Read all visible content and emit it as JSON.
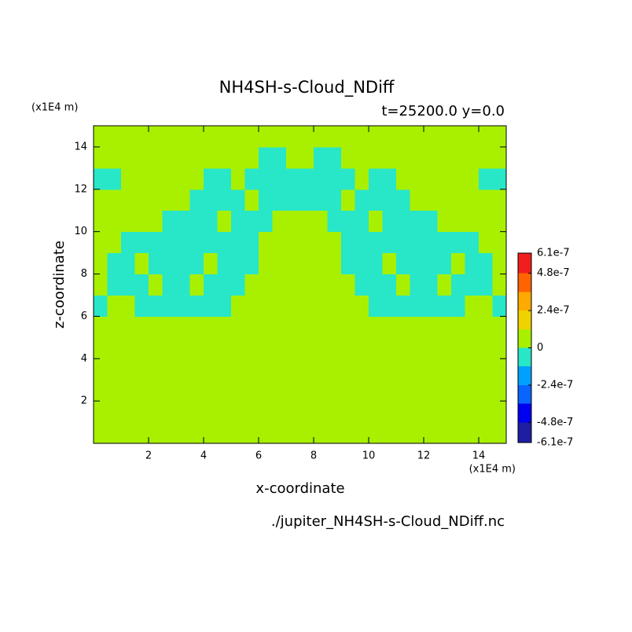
{
  "chart_data": {
    "type": "contour",
    "title": "NH4SH-s-Cloud_NDiff",
    "subtitle": "t=25200.0 y=0.0",
    "xlabel": "x-coordinate",
    "ylabel": "z-coordinate",
    "x_unit": "(x1E4 m)",
    "y_unit": "(x1E4 m)",
    "file": "./jupiter_NH4SH-s-Cloud_NDiff.nc",
    "xlim": [
      0,
      15
    ],
    "ylim": [
      0,
      15
    ],
    "xticks": [
      2,
      4,
      6,
      8,
      10,
      12,
      14
    ],
    "yticks": [
      2,
      4,
      6,
      8,
      10,
      12,
      14
    ],
    "x": [
      0.25,
      0.75,
      1.25,
      1.75,
      2.25,
      2.75,
      3.25,
      3.75,
      4.25,
      4.75,
      5.25,
      5.75,
      6.25,
      6.75,
      7.25,
      7.75,
      8.25,
      8.75,
      9.25,
      9.75,
      10.25,
      10.75,
      11.25,
      11.75,
      12.25,
      12.75,
      13.25,
      13.75,
      14.25,
      14.75
    ],
    "y": [
      0.5,
      1.5,
      2.5,
      3.5,
      4.5,
      5.5,
      6.5,
      7.5,
      8.5,
      9.5,
      10.5,
      11.5,
      12.5,
      13.5,
      14.5
    ],
    "z": [
      [
        0,
        0,
        0,
        0,
        0,
        0,
        0,
        0,
        0,
        0,
        0,
        0,
        0,
        0,
        0,
        0,
        0,
        0,
        0,
        0,
        0,
        0,
        0,
        0,
        0,
        0,
        0,
        0,
        0,
        0
      ],
      [
        0,
        0,
        0,
        0,
        0,
        0,
        0,
        0,
        0,
        0,
        0,
        0,
        0,
        0,
        0,
        0,
        0,
        0,
        0,
        0,
        0,
        0,
        0,
        0,
        0,
        0,
        0,
        0,
        0,
        0
      ],
      [
        0,
        0,
        0,
        0,
        0,
        0,
        0,
        0,
        0,
        0,
        0,
        0,
        0,
        0,
        0,
        0,
        0,
        0,
        0,
        0,
        0,
        0,
        0,
        0,
        0,
        0,
        0,
        0,
        0,
        0
      ],
      [
        0,
        0,
        0,
        0,
        0,
        0,
        0,
        0,
        0,
        0,
        0,
        0,
        0,
        0,
        0,
        0,
        0,
        0,
        0,
        0,
        0,
        0,
        0,
        0,
        0,
        0,
        0,
        0,
        0,
        0
      ],
      [
        0,
        0,
        0,
        0,
        0,
        0,
        0,
        0,
        0,
        0,
        0,
        0,
        0,
        0,
        0,
        0,
        0,
        0,
        0,
        0,
        0,
        0,
        0,
        0,
        0,
        0,
        0,
        0,
        0,
        0
      ],
      [
        0,
        0,
        0,
        0,
        0,
        0,
        0,
        0,
        0,
        0,
        0,
        0,
        0,
        0,
        0,
        0,
        0,
        0,
        0,
        0,
        0,
        0,
        0,
        0,
        0,
        0,
        0,
        0,
        0,
        0
      ],
      [
        -5e-08,
        0,
        0,
        -5e-08,
        -5e-08,
        -5e-08,
        -5e-08,
        -5e-08,
        -5e-08,
        -5e-08,
        0,
        0,
        0,
        0,
        0,
        0,
        0,
        0,
        0,
        0,
        -5e-08,
        -5e-08,
        -5e-08,
        -5e-08,
        -5e-08,
        -5e-08,
        -5e-08,
        0,
        0,
        -5e-08
      ],
      [
        0,
        -5e-08,
        -5e-08,
        -5e-08,
        0,
        -5e-08,
        -5e-08,
        0,
        -5e-08,
        -5e-08,
        -5e-08,
        0,
        0,
        0,
        0,
        0,
        0,
        0,
        0,
        -5e-08,
        -5e-08,
        -5e-08,
        0,
        -5e-08,
        -5e-08,
        0,
        -5e-08,
        -5e-08,
        -5e-08,
        0
      ],
      [
        0,
        -5e-08,
        -5e-08,
        0,
        -5e-08,
        -5e-08,
        -5e-08,
        -5e-08,
        0,
        -5e-08,
        -5e-08,
        -5e-08,
        0,
        0,
        0,
        0,
        0,
        0,
        -5e-08,
        -5e-08,
        -5e-08,
        0,
        -5e-08,
        -5e-08,
        -5e-08,
        -5e-08,
        0,
        -5e-08,
        -5e-08,
        0
      ],
      [
        0,
        0,
        -5e-08,
        -5e-08,
        -5e-08,
        -5e-08,
        -5e-08,
        -5e-08,
        -5e-08,
        -5e-08,
        -5e-08,
        -5e-08,
        0,
        0,
        0,
        0,
        0,
        0,
        -5e-08,
        -5e-08,
        -5e-08,
        -5e-08,
        -5e-08,
        -5e-08,
        -5e-08,
        -5e-08,
        -5e-08,
        -5e-08,
        0,
        0
      ],
      [
        0,
        0,
        0,
        0,
        0,
        -5e-08,
        -5e-08,
        -5e-08,
        -5e-08,
        0,
        -5e-08,
        -5e-08,
        -5e-08,
        0,
        0,
        0,
        0,
        -5e-08,
        -5e-08,
        -5e-08,
        0,
        -5e-08,
        -5e-08,
        -5e-08,
        -5e-08,
        0,
        0,
        0,
        0,
        0
      ],
      [
        0,
        0,
        0,
        0,
        0,
        0,
        0,
        -5e-08,
        -5e-08,
        -5e-08,
        -5e-08,
        0,
        -5e-08,
        -5e-08,
        -5e-08,
        -5e-08,
        -5e-08,
        -5e-08,
        0,
        -5e-08,
        -5e-08,
        -5e-08,
        -5e-08,
        0,
        0,
        0,
        0,
        0,
        0,
        0
      ],
      [
        -5e-08,
        -5e-08,
        0,
        0,
        0,
        0,
        0,
        0,
        -5e-08,
        -5e-08,
        0,
        -5e-08,
        -5e-08,
        -5e-08,
        -5e-08,
        -5e-08,
        -5e-08,
        -5e-08,
        -5e-08,
        0,
        -5e-08,
        -5e-08,
        0,
        0,
        0,
        0,
        0,
        0,
        -5e-08,
        -5e-08
      ],
      [
        0,
        0,
        0,
        0,
        0,
        0,
        0,
        0,
        0,
        0,
        0,
        0,
        -5e-08,
        -5e-08,
        0,
        0,
        -5e-08,
        -5e-08,
        0,
        0,
        0,
        0,
        0,
        0,
        0,
        0,
        0,
        0,
        0,
        0
      ],
      [
        0,
        0,
        0,
        0,
        0,
        0,
        0,
        0,
        0,
        0,
        0,
        0,
        0,
        0,
        0,
        0,
        0,
        0,
        0,
        0,
        0,
        0,
        0,
        0,
        0,
        0,
        0,
        0,
        0,
        0
      ]
    ],
    "colorbar": {
      "levels": [
        -6.1e-07,
        -4.8e-07,
        -3.6e-07,
        -2.4e-07,
        -1.2e-07,
        0,
        1.2e-07,
        2.4e-07,
        3.6e-07,
        4.8e-07,
        6.1e-07
      ],
      "colors": [
        "#1e1ea0",
        "#0000f0",
        "#0a64ff",
        "#00a0ff",
        "#28e6c8",
        "#a8f000",
        "#f0d200",
        "#ffaa00",
        "#ff6400",
        "#f01e1e"
      ],
      "ticks": [
        6.1e-07,
        4.8e-07,
        2.4e-07,
        0,
        -2.4e-07,
        -4.8e-07,
        -6.1e-07
      ]
    }
  }
}
